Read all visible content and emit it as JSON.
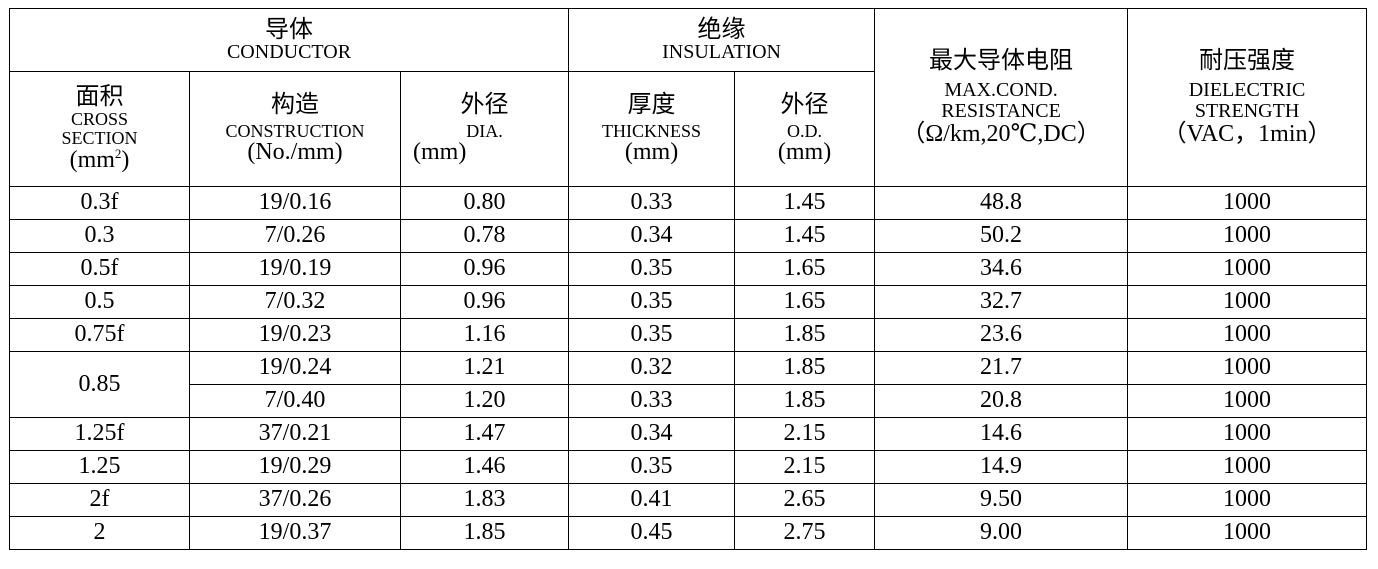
{
  "header": {
    "conductor": {
      "cn": "导体",
      "en": "CONDUCTOR"
    },
    "insulation": {
      "cn": "绝缘",
      "en": "INSULATION"
    },
    "resistance": {
      "cn": "最大导体电阻",
      "en1": "MAX.COND.",
      "en2": "RESISTANCE",
      "unit": "（Ω/km,20℃,DC）"
    },
    "dielectric": {
      "cn": "耐压强度",
      "en1": "DIELECTRIC",
      "en2": "STRENGTH",
      "unit": "（VAC，1min）"
    },
    "cross_section": {
      "cn": "面积",
      "en1": "CROSS",
      "en2": "SECTION",
      "unit_pre": "(mm",
      "unit_sup": "2",
      "unit_post": ")"
    },
    "construction": {
      "cn": "构造",
      "en": "CONSTRUCTION",
      "unit": "(No./mm)"
    },
    "dia": {
      "cn": "外径",
      "en": "DIA.",
      "unit": "(mm)"
    },
    "thickness": {
      "cn": "厚度",
      "en": "THICKNESS",
      "unit": "(mm)"
    },
    "od": {
      "cn": "外径",
      "en": "O.D.",
      "unit": "(mm)"
    }
  },
  "rows": [
    {
      "section": "0.3f",
      "construction": "19/0.16",
      "dia": "0.80",
      "thickness": "0.33",
      "od": "1.45",
      "resistance": "48.8",
      "dielectric": "1000"
    },
    {
      "section": "0.3",
      "construction": "7/0.26",
      "dia": "0.78",
      "thickness": "0.34",
      "od": "1.45",
      "resistance": "50.2",
      "dielectric": "1000"
    },
    {
      "section": "0.5f",
      "construction": "19/0.19",
      "dia": "0.96",
      "thickness": "0.35",
      "od": "1.65",
      "resistance": "34.6",
      "dielectric": "1000"
    },
    {
      "section": "0.5",
      "construction": "7/0.32",
      "dia": "0.96",
      "thickness": "0.35",
      "od": "1.65",
      "resistance": "32.7",
      "dielectric": "1000"
    },
    {
      "section": "0.75f",
      "construction": "19/0.23",
      "dia": "1.16",
      "thickness": "0.35",
      "od": "1.85",
      "resistance": "23.6",
      "dielectric": "1000"
    },
    {
      "section": "0.85",
      "construction": "19/0.24",
      "dia": "1.21",
      "thickness": "0.32",
      "od": "1.85",
      "resistance": "21.7",
      "dielectric": "1000"
    },
    {
      "section": "",
      "construction": "7/0.40",
      "dia": "1.20",
      "thickness": "0.33",
      "od": "1.85",
      "resistance": "20.8",
      "dielectric": "1000"
    },
    {
      "section": "1.25f",
      "construction": "37/0.21",
      "dia": "1.47",
      "thickness": "0.34",
      "od": "2.15",
      "resistance": "14.6",
      "dielectric": "1000"
    },
    {
      "section": "1.25",
      "construction": "19/0.29",
      "dia": "1.46",
      "thickness": "0.35",
      "od": "2.15",
      "resistance": "14.9",
      "dielectric": "1000"
    },
    {
      "section": "2f",
      "construction": "37/0.26",
      "dia": "1.83",
      "thickness": "0.41",
      "od": "2.65",
      "resistance": "9.50",
      "dielectric": "1000"
    },
    {
      "section": "2",
      "construction": "19/0.37",
      "dia": "1.85",
      "thickness": "0.45",
      "od": "2.75",
      "resistance": "9.00",
      "dielectric": "1000"
    }
  ]
}
